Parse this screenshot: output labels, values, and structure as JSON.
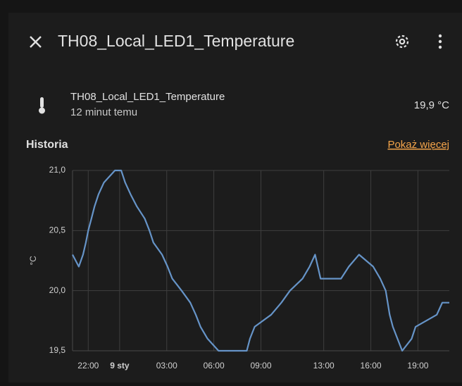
{
  "dialog": {
    "title": "TH08_Local_LED1_Temperature",
    "entity_name": "TH08_Local_LED1_Temperature",
    "last_changed": "12 minut temu",
    "state": "19,9 °C",
    "history_heading": "Historia",
    "more_link": "Pokaż więcej"
  },
  "chart_data": {
    "type": "line",
    "y_label": "°C",
    "color": "#6694c8",
    "grid": true,
    "x": [
      -3.0,
      -2.6,
      -2.33,
      -2.15,
      -2.0,
      -1.8,
      -1.6,
      -1.35,
      -1.0,
      -0.3,
      0.1,
      0.35,
      0.7,
      1.1,
      1.6,
      1.9,
      2.15,
      2.7,
      3.05,
      3.35,
      3.95,
      4.5,
      4.85,
      5.15,
      5.6,
      6.3,
      8.1,
      8.3,
      8.6,
      9.65,
      10.3,
      10.85,
      11.65,
      12.1,
      12.45,
      12.8,
      14.1,
      14.6,
      15.25,
      16.15,
      16.6,
      16.95,
      17.2,
      17.4,
      17.7,
      18.0,
      18.6,
      18.85,
      20.2,
      20.55,
      21.0
    ],
    "values": [
      20.3,
      20.2,
      20.3,
      20.4,
      20.5,
      20.6,
      20.7,
      20.8,
      20.9,
      21.0,
      21.0,
      20.9,
      20.8,
      20.7,
      20.6,
      20.5,
      20.4,
      20.3,
      20.2,
      20.1,
      20.0,
      19.9,
      19.8,
      19.7,
      19.6,
      19.5,
      19.5,
      19.6,
      19.7,
      19.8,
      19.9,
      20.0,
      20.1,
      20.2,
      20.3,
      20.1,
      20.1,
      20.2,
      20.3,
      20.2,
      20.1,
      20.0,
      19.8,
      19.7,
      19.6,
      19.5,
      19.6,
      19.7,
      19.8,
      19.9,
      19.9
    ],
    "xlim": [
      -3,
      21
    ],
    "ylim": [
      19.5,
      21.0
    ],
    "xticks": [
      {
        "value": -2,
        "label": "22:00"
      },
      {
        "value": 0,
        "label": "9 sty"
      },
      {
        "value": 3,
        "label": "03:00"
      },
      {
        "value": 6,
        "label": "06:00"
      },
      {
        "value": 9,
        "label": "09:00"
      },
      {
        "value": 13,
        "label": "13:00"
      },
      {
        "value": 16,
        "label": "16:00"
      },
      {
        "value": 19,
        "label": "19:00"
      }
    ],
    "yticks": [
      {
        "value": 19.5,
        "label": "19,5"
      },
      {
        "value": 20.0,
        "label": "20,0"
      },
      {
        "value": 20.5,
        "label": "20,5"
      },
      {
        "value": 21.0,
        "label": "21,0"
      }
    ]
  }
}
